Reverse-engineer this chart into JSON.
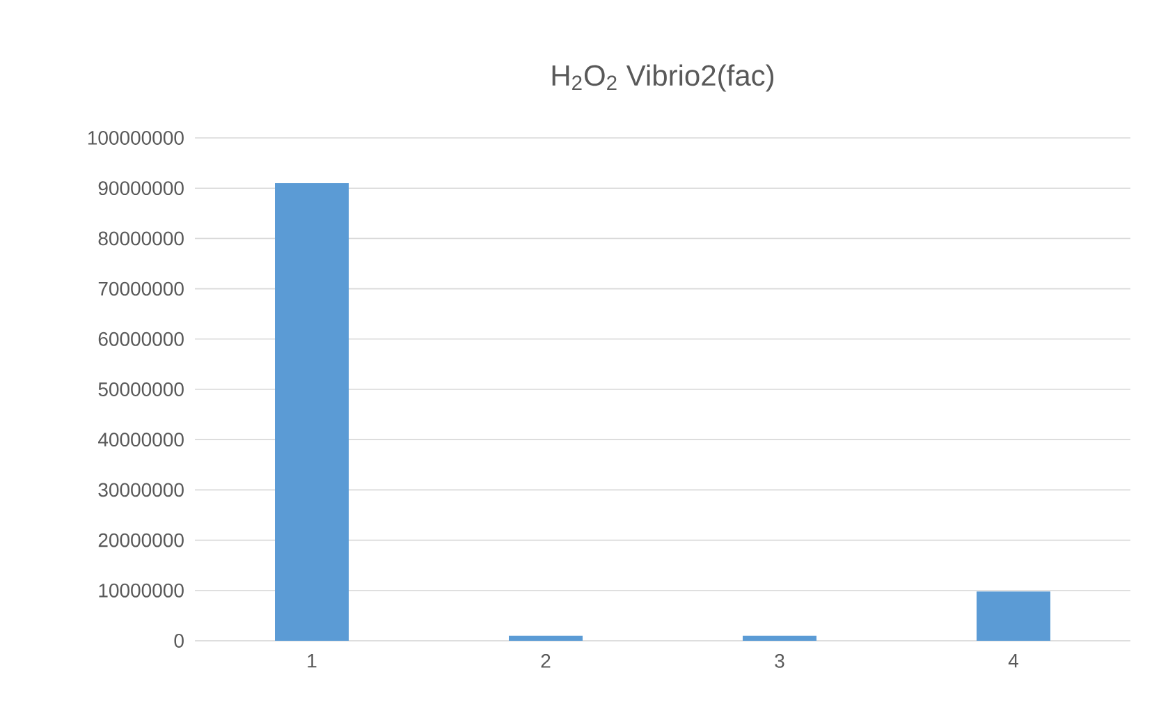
{
  "chart_data": {
    "type": "bar",
    "title": "H$_{2}$O$_{2}$ Vibrio2(fac)",
    "categories": [
      "1",
      "2",
      "3",
      "4"
    ],
    "values": [
      91000000,
      1000000,
      1000000,
      9800000
    ],
    "color": "#5b9bd5",
    "ylim": [
      0,
      100000000
    ],
    "yticks": [
      0,
      10000000,
      20000000,
      30000000,
      40000000,
      50000000,
      60000000,
      70000000,
      80000000,
      90000000,
      100000000
    ],
    "grid": "y"
  }
}
